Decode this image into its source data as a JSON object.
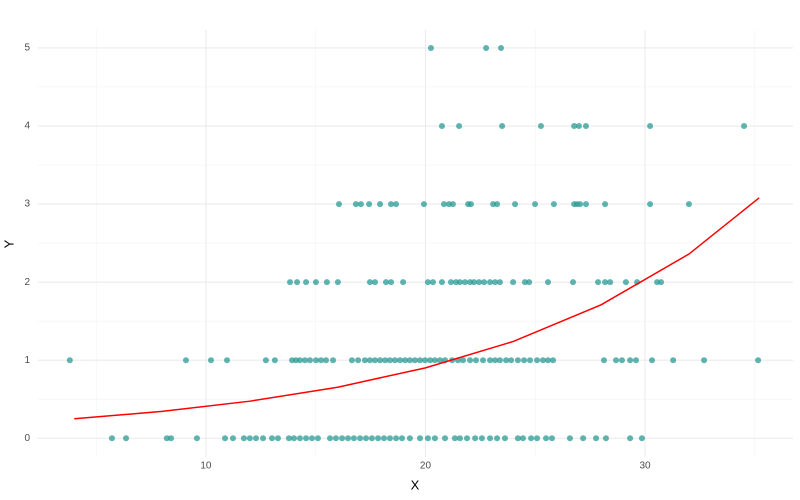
{
  "chart_data": {
    "type": "scatter",
    "x_label": "X",
    "y_label": "Y",
    "xlim": [
      2.35,
      36.74
    ],
    "ylim": [
      -0.24,
      5.23
    ],
    "xticks": [
      10,
      20,
      30
    ],
    "yticks": [
      0,
      1,
      2,
      3,
      4,
      5
    ],
    "x_minor_ticks": [
      5,
      15,
      25,
      35
    ],
    "y_minor_ticks": [
      0.5,
      1.5,
      2.5,
      3.5,
      4.5
    ],
    "grid": true,
    "points": {
      "color": "#2a9b96",
      "x": [
        20.25,
        22.76,
        23.44,
        20.75,
        21.53,
        23.49,
        25.26,
        26.77,
        26.99,
        27.31,
        30.23,
        34.51,
        16.06,
        16.83,
        17.06,
        17.43,
        17.93,
        18.43,
        18.66,
        19.93,
        20.84,
        21.07,
        21.25,
        21.94,
        22.07,
        23.08,
        23.26,
        24.08,
        24.99,
        25.85,
        26.77,
        26.9,
        27.04,
        27.31,
        28.18,
        30.23,
        32.0,
        13.83,
        14.15,
        14.56,
        15.01,
        15.51,
        16.01,
        17.47,
        17.7,
        18.2,
        18.43,
        18.98,
        20.11,
        20.34,
        20.75,
        21.16,
        21.39,
        21.57,
        21.8,
        22.03,
        22.21,
        22.44,
        22.67,
        22.94,
        23.17,
        23.39,
        23.99,
        24.53,
        24.72,
        25.58,
        26.72,
        27.86,
        28.18,
        28.41,
        29.13,
        29.64,
        30.55,
        30.73,
        3.8,
        9.09,
        10.23,
        10.96,
        12.73,
        13.14,
        13.92,
        14.1,
        14.28,
        14.51,
        14.74,
        15.01,
        15.24,
        15.47,
        15.79,
        16.65,
        16.93,
        17.24,
        17.47,
        17.7,
        17.93,
        18.16,
        18.38,
        18.61,
        18.84,
        19.07,
        19.29,
        19.52,
        19.75,
        19.98,
        20.21,
        20.43,
        20.66,
        20.89,
        21.21,
        21.48,
        21.71,
        22.03,
        22.3,
        22.62,
        22.94,
        23.17,
        23.39,
        23.67,
        23.9,
        24.21,
        24.49,
        24.76,
        25.08,
        25.35,
        25.58,
        25.81,
        28.13,
        28.68,
        28.95,
        29.32,
        29.59,
        30.32,
        31.28,
        32.69,
        35.15,
        5.72,
        6.36,
        8.22,
        8.41,
        9.59,
        10.87,
        11.23,
        11.73,
        12.0,
        12.28,
        12.6,
        13.01,
        13.28,
        13.78,
        14.01,
        14.28,
        14.56,
        14.83,
        15.1,
        15.65,
        15.92,
        16.2,
        16.47,
        16.74,
        17.02,
        17.29,
        17.56,
        17.84,
        18.11,
        18.38,
        18.66,
        18.93,
        19.29,
        19.75,
        20.11,
        20.43,
        20.89,
        21.34,
        21.57,
        21.89,
        22.26,
        22.57,
        22.94,
        23.26,
        23.62,
        24.21,
        24.44,
        24.81,
        25.08,
        25.49,
        25.76,
        26.58,
        27.18,
        27.77,
        28.22,
        29.32,
        29.86
      ],
      "y": [
        5,
        5,
        5,
        4,
        4,
        4,
        4,
        4,
        4,
        4,
        4,
        4,
        3,
        3,
        3,
        3,
        3,
        3,
        3,
        3,
        3,
        3,
        3,
        3,
        3,
        3,
        3,
        3,
        3,
        3,
        3,
        3,
        3,
        3,
        3,
        3,
        3,
        2,
        2,
        2,
        2,
        2,
        2,
        2,
        2,
        2,
        2,
        2,
        2,
        2,
        2,
        2,
        2,
        2,
        2,
        2,
        2,
        2,
        2,
        2,
        2,
        2,
        2,
        2,
        2,
        2,
        2,
        2,
        2,
        2,
        2,
        2,
        2,
        2,
        1,
        1,
        1,
        1,
        1,
        1,
        1,
        1,
        1,
        1,
        1,
        1,
        1,
        1,
        1,
        1,
        1,
        1,
        1,
        1,
        1,
        1,
        1,
        1,
        1,
        1,
        1,
        1,
        1,
        1,
        1,
        1,
        1,
        1,
        1,
        1,
        1,
        1,
        1,
        1,
        1,
        1,
        1,
        1,
        1,
        1,
        1,
        1,
        1,
        1,
        1,
        1,
        1,
        1,
        1,
        1,
        1,
        1,
        1,
        1,
        1,
        0,
        0,
        0,
        0,
        0,
        0,
        0,
        0,
        0,
        0,
        0,
        0,
        0,
        0,
        0,
        0,
        0,
        0,
        0,
        0,
        0,
        0,
        0,
        0,
        0,
        0,
        0,
        0,
        0,
        0,
        0,
        0,
        0,
        0,
        0,
        0,
        0,
        0,
        0,
        0,
        0,
        0,
        0,
        0,
        0,
        0,
        0,
        0,
        0,
        0,
        0,
        0,
        0,
        0,
        0,
        0,
        0
      ]
    },
    "fit": {
      "color": "#ff0000",
      "x": [
        4,
        8,
        12,
        16,
        20,
        24,
        28,
        32,
        35.2
      ],
      "y": [
        0.25,
        0.344,
        0.475,
        0.654,
        0.902,
        1.24,
        1.71,
        2.36,
        3.08
      ]
    }
  }
}
